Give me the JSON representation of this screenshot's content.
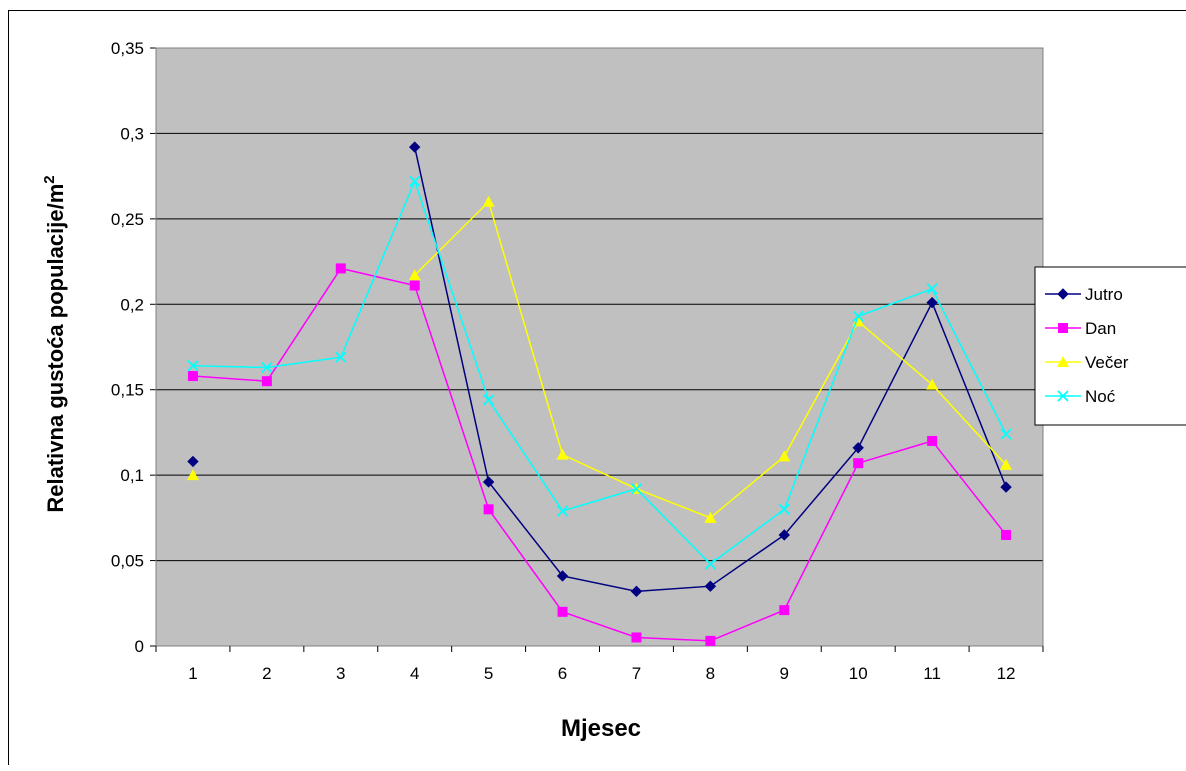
{
  "chart_data": {
    "type": "line",
    "title": "",
    "xlabel": "Mjesec",
    "ylabel": "Relativna gustoća populacije/m",
    "ylabel_superscript": "2",
    "categories": [
      "1",
      "2",
      "3",
      "4",
      "5",
      "6",
      "7",
      "8",
      "9",
      "10",
      "11",
      "12"
    ],
    "y_ticks": [
      "0",
      "0,05",
      "0,1",
      "0,15",
      "0,2",
      "0,25",
      "0,3",
      "0,35"
    ],
    "ylim": [
      0,
      0.35
    ],
    "grid": "horizontal",
    "legend_position": "right",
    "plot_background": "#c0c0c0",
    "series": [
      {
        "name": "Jutro",
        "color": "#000080",
        "marker": "diamond",
        "values": [
          0.108,
          null,
          null,
          0.292,
          0.096,
          0.041,
          0.032,
          0.035,
          0.065,
          0.116,
          0.201,
          0.093
        ]
      },
      {
        "name": "Dan",
        "color": "#ff00ff",
        "marker": "square",
        "values": [
          0.158,
          0.155,
          0.221,
          0.211,
          0.08,
          0.02,
          0.005,
          0.003,
          0.021,
          0.107,
          0.12,
          0.065
        ]
      },
      {
        "name": "Večer",
        "color": "#ffff00",
        "marker": "triangle",
        "values": [
          0.1,
          null,
          null,
          0.217,
          0.26,
          0.112,
          0.092,
          0.075,
          0.111,
          0.19,
          0.153,
          0.106
        ]
      },
      {
        "name": "Noć",
        "color": "#00ffff",
        "marker": "x",
        "values": [
          0.164,
          0.163,
          0.169,
          0.272,
          0.144,
          0.079,
          0.092,
          0.048,
          0.08,
          0.193,
          0.209,
          0.124
        ]
      }
    ]
  }
}
